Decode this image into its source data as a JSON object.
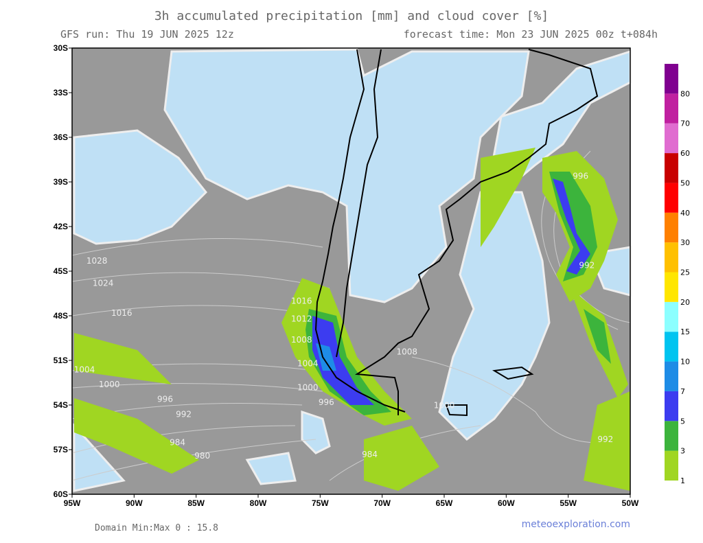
{
  "title": "3h accumulated precipitation [mm] and cloud cover [%]",
  "run": "GFS run: Thu 19 JUN 2025 12z",
  "forecast": "forecast time: Mon 23 JUN 2025 00z  t+084h",
  "map": {
    "xlim": [
      -95,
      -50
    ],
    "ylim": [
      -60,
      -30
    ],
    "xticks": [
      {
        "value": -95,
        "label": "95W"
      },
      {
        "value": -90,
        "label": "90W"
      },
      {
        "value": -85,
        "label": "85W"
      },
      {
        "value": -80,
        "label": "80W"
      },
      {
        "value": -75,
        "label": "75W"
      },
      {
        "value": -70,
        "label": "70W"
      },
      {
        "value": -65,
        "label": "65W"
      },
      {
        "value": -60,
        "label": "60W"
      },
      {
        "value": -55,
        "label": "55W"
      },
      {
        "value": -50,
        "label": "50W"
      }
    ],
    "yticks": [
      {
        "value": -30,
        "label": "30S"
      },
      {
        "value": -33,
        "label": "33S"
      },
      {
        "value": -36,
        "label": "36S"
      },
      {
        "value": -39,
        "label": "39S"
      },
      {
        "value": -42,
        "label": "42S"
      },
      {
        "value": -45,
        "label": "45S"
      },
      {
        "value": -48,
        "label": "48S"
      },
      {
        "value": -51,
        "label": "51S"
      },
      {
        "value": -54,
        "label": "54S"
      },
      {
        "value": -57,
        "label": "57S"
      },
      {
        "value": -60,
        "label": "60S"
      }
    ],
    "isobars": [
      {
        "label": "1028",
        "lon": -93,
        "lat": -44.5
      },
      {
        "label": "1024",
        "lon": -92.5,
        "lat": -46
      },
      {
        "label": "1016",
        "lon": -91,
        "lat": -48
      },
      {
        "label": "1016",
        "lon": -76.5,
        "lat": -47.2
      },
      {
        "label": "1012",
        "lon": -76.5,
        "lat": -48.4
      },
      {
        "label": "1008",
        "lon": -76.5,
        "lat": -49.8
      },
      {
        "label": "1004",
        "lon": -76,
        "lat": -51.4
      },
      {
        "label": "1000",
        "lon": -76,
        "lat": -53
      },
      {
        "label": "996",
        "lon": -74.5,
        "lat": -54
      },
      {
        "label": "1004",
        "lon": -94,
        "lat": -51.8
      },
      {
        "label": "1000",
        "lon": -92,
        "lat": -52.8
      },
      {
        "label": "996",
        "lon": -87.5,
        "lat": -53.8
      },
      {
        "label": "992",
        "lon": -86,
        "lat": -54.8
      },
      {
        "label": "984",
        "lon": -86.5,
        "lat": -56.7
      },
      {
        "label": "980",
        "lon": -84.5,
        "lat": -57.6
      },
      {
        "label": "984",
        "lon": -71,
        "lat": -57.5
      },
      {
        "label": "1008",
        "lon": -68,
        "lat": -50.6
      },
      {
        "label": "1000",
        "lon": -65,
        "lat": -54.2
      },
      {
        "label": "996",
        "lon": -54,
        "lat": -38.8
      },
      {
        "label": "992",
        "lon": -53.5,
        "lat": -44.8
      },
      {
        "label": "992",
        "lon": -52,
        "lat": -56.5
      }
    ]
  },
  "colorbar": {
    "levels": [
      1,
      3,
      5,
      7,
      10,
      15,
      20,
      25,
      30,
      40,
      50,
      60,
      70,
      80
    ],
    "colors": [
      "#a0d622",
      "#3cb43c",
      "#3c3cf0",
      "#1e8ce6",
      "#00c4f0",
      "#8cffff",
      "#ffe600",
      "#ffc000",
      "#ff8000",
      "#ff0000",
      "#c80000",
      "#e06cd0",
      "#c020a0",
      "#800090"
    ]
  },
  "footer": {
    "minmax": "Domain Min:Max 0 : 15.8",
    "site": "meteoexploration.com"
  }
}
